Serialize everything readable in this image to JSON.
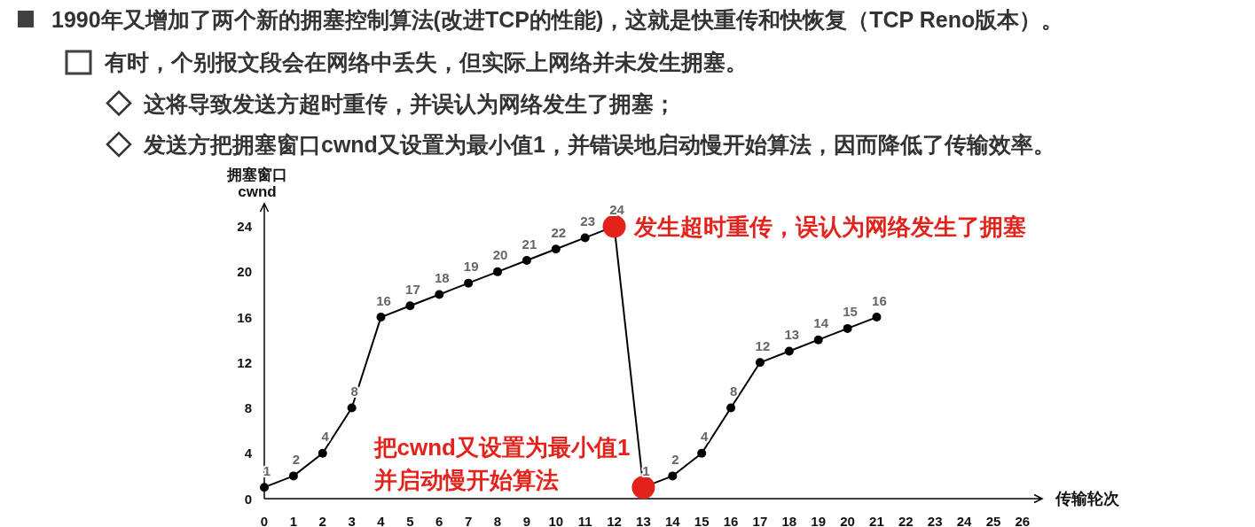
{
  "chart_data": {
    "type": "line",
    "title": "1990年又增加了两个新的拥塞控制算法(改进TCP的性能)，这就是快重传和快恢复（TCP Reno版本）。",
    "subtitle": "有时，个别报文段会在网络中丢失，但实际上网络并未发生拥塞。",
    "annotations": [
      "这将导致发送方超时重传，并误认为网络发生了拥塞；",
      "发送方把拥塞窗口cwnd又设置为最小值1，并错误地启动慢开始算法，因而降低了传输效率。",
      {
        "text": "发生超时重传，误认为网络发生了拥塞",
        "x": 12,
        "y": 24
      },
      {
        "text": "把cwnd又设置为最小值1\n并启动慢开始算法",
        "x": 13,
        "y": 1
      }
    ],
    "xlabel": "传输轮次",
    "ylabel": "拥塞窗口\ncwnd",
    "series": [
      {
        "type": "line",
        "color": "#000000",
        "x": [
          0,
          1,
          2,
          3,
          4,
          5,
          6,
          7,
          8,
          9,
          10,
          11,
          12,
          13,
          14,
          15,
          16,
          17,
          18,
          19,
          20,
          21
        ],
        "values": [
          1,
          2,
          4,
          8,
          16,
          17,
          18,
          19,
          20,
          21,
          22,
          23,
          24,
          1,
          2,
          4,
          8,
          12,
          13,
          14,
          15,
          16
        ],
        "value_labels": [
          "1",
          "2",
          "4",
          "8",
          "16",
          "17",
          "18",
          "19",
          "20",
          "21",
          "22",
          "23",
          "24",
          "1",
          "2",
          "4",
          "8",
          "12",
          "13",
          "14",
          "15",
          "16"
        ]
      },
      {
        "type": "scatter",
        "color": "#e3231b",
        "x": [
          12,
          13
        ],
        "values": [
          24,
          1
        ]
      }
    ],
    "xlim": [
      0,
      26.4
    ],
    "ylim": [
      0,
      26
    ],
    "xticks": [
      0,
      1,
      2,
      3,
      4,
      5,
      6,
      7,
      8,
      9,
      10,
      11,
      12,
      13,
      14,
      15,
      16,
      17,
      18,
      19,
      20,
      21,
      22,
      23,
      24,
      25,
      26
    ],
    "yticks": [
      0,
      4,
      8,
      12,
      16,
      20,
      24
    ],
    "marker": "circle",
    "line_style": "solid"
  }
}
